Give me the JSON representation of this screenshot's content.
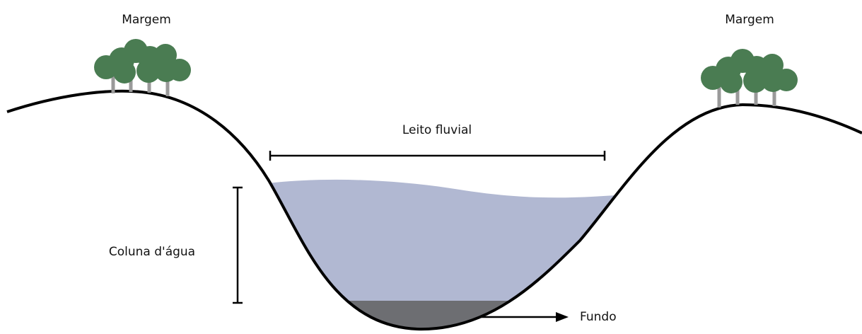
{
  "labels": {
    "left_bank": "Margem",
    "right_bank": "Margem",
    "riverbed": "Leito fluvial",
    "water_column": "Coluna d'água",
    "bottom": "Fundo"
  }
}
